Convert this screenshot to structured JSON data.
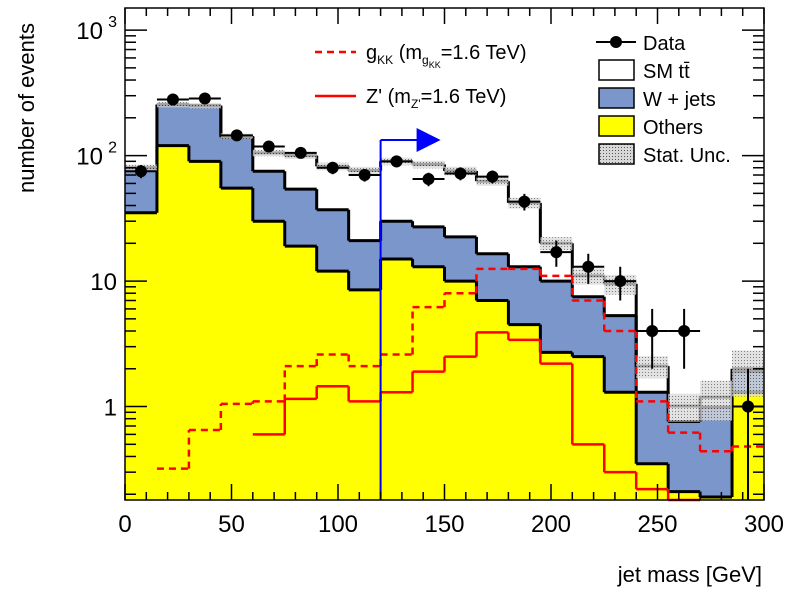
{
  "chart_data": {
    "type": "histogram",
    "xlabel": "jet mass [GeV]",
    "ylabel": "number of events",
    "xlim": [
      0,
      300
    ],
    "ylim": [
      0.18,
      1500
    ],
    "yscale": "log",
    "bin_edges": [
      0,
      15,
      30,
      45,
      60,
      75,
      90,
      105,
      120,
      135,
      150,
      165,
      180,
      195,
      210,
      225,
      240,
      255,
      270,
      285,
      300
    ],
    "x_ticks": [
      0,
      50,
      100,
      150,
      200,
      250,
      300
    ],
    "y_tick_labels": [
      {
        "value": 1,
        "label": "1"
      },
      {
        "value": 10,
        "label": "10"
      },
      {
        "value": 100,
        "label": "10",
        "exp": "2"
      },
      {
        "value": 1000,
        "label": "10",
        "exp": "3"
      }
    ],
    "stack": [
      {
        "name": "Others",
        "color": "#ffff00",
        "values": [
          35,
          120,
          90,
          55,
          30,
          19,
          12,
          8.5,
          15,
          13,
          10,
          7,
          4.5,
          2.7,
          2.5,
          1.3,
          0.35,
          0.21,
          0.19,
          1.3
        ]
      },
      {
        "name": "W + jets",
        "color": "#7b96cb",
        "values": [
          45,
          135,
          160,
          85,
          45,
          35,
          25,
          12.5,
          15,
          14,
          12.5,
          9.5,
          8.5,
          7.3,
          5,
          4,
          0.95,
          0.55,
          0.8,
          0.6
        ]
      },
      {
        "name": "SM tt̄",
        "color": "#ffffff",
        "values": [
          0,
          0,
          0,
          3,
          30,
          46,
          45,
          55,
          60,
          58,
          53,
          46,
          29,
          10,
          3.5,
          4.2,
          0.8,
          0.25,
          0.2,
          0.1
        ]
      }
    ],
    "stat_unc_relative": [
      0.06,
      0.05,
      0.05,
      0.05,
      0.06,
      0.06,
      0.07,
      0.07,
      0.07,
      0.07,
      0.08,
      0.08,
      0.1,
      0.12,
      0.15,
      0.18,
      0.2,
      0.25,
      0.35,
      0.4
    ],
    "data": {
      "name": "Data",
      "values": [
        75,
        280,
        285,
        145,
        118,
        105,
        80,
        70,
        90,
        65,
        72,
        68,
        43,
        17,
        13,
        10,
        4,
        4,
        0,
        1
      ],
      "errors": [
        9,
        17,
        17,
        12,
        11,
        10,
        9,
        8,
        9.5,
        8,
        8.5,
        8,
        6.5,
        4,
        3.5,
        3,
        2,
        2,
        0,
        1
      ]
    },
    "signals": [
      {
        "name": "g_KK (m_g_KK=1.6 TeV)",
        "color": "#ff0000",
        "style": "dashed",
        "values": [
          0.13,
          0.32,
          0.65,
          1.05,
          1.1,
          2.1,
          2.6,
          2.1,
          2.6,
          6.2,
          8,
          12.5,
          12.5,
          11,
          7,
          4,
          1.1,
          0.62,
          0.44,
          0.48
        ]
      },
      {
        "name": "Z' (m_Z'=1.6 TeV)",
        "color": "#ff0000",
        "style": "solid",
        "values": [
          0.05,
          0.05,
          0.08,
          0.15,
          0.6,
          1.15,
          1.45,
          1.1,
          1.3,
          1.9,
          2.5,
          3.9,
          3.4,
          2.2,
          0.5,
          0.3,
          0.22,
          0.18,
          0.14,
          0.12
        ]
      }
    ],
    "cut_line": {
      "x": 120,
      "color": "#0000ff"
    },
    "legend_left": [
      {
        "style": "dashed",
        "color": "#ff0000",
        "main": "g",
        "sub": "KK",
        "open": " (m",
        "inner": "g",
        "innersub": "KK",
        "close": "=1.6 TeV)"
      },
      {
        "style": "solid",
        "color": "#ff0000",
        "main": "Z'",
        "sub": "",
        "open": " (m",
        "inner": "Z'",
        "innersub": "",
        "close": "=1.6 TeV)"
      }
    ],
    "legend_right": [
      {
        "kind": "marker",
        "label": "Data"
      },
      {
        "kind": "box",
        "fill": "#ffffff",
        "label": "SM tt̄"
      },
      {
        "kind": "box",
        "fill": "#7b96cb",
        "label": "W + jets"
      },
      {
        "kind": "box",
        "fill": "#ffff00",
        "label": "Others"
      },
      {
        "kind": "hatch",
        "fill": "#bbbbbb",
        "label": "Stat. Unc."
      }
    ]
  }
}
